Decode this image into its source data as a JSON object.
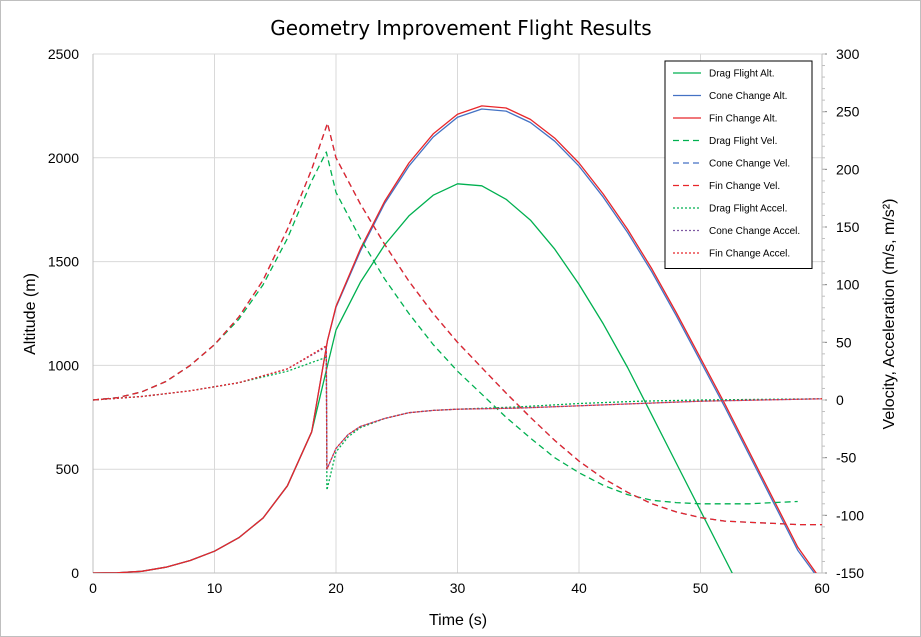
{
  "chart_data": {
    "type": "line",
    "title": "Geometry Improvement Flight Results",
    "xlabel": "Time (s)",
    "ylabel": "Altitude (m)",
    "y2label": "Velocity, Acceleration (m/s, m/s²)",
    "xlim": [
      0,
      60
    ],
    "ylim": [
      0,
      2500
    ],
    "y2lim": [
      -150,
      300
    ],
    "x_ticks": [
      "0",
      "10",
      "20",
      "30",
      "40",
      "50",
      "60"
    ],
    "y_ticks": [
      "0",
      "500",
      "1000",
      "1500",
      "2000",
      "2500"
    ],
    "y2_ticks": [
      "-150",
      "-100",
      "-50",
      "0",
      "50",
      "100",
      "150",
      "200",
      "250",
      "300"
    ],
    "grid": true,
    "legend_position": "top-right",
    "series": [
      {
        "name": "Drag Flight Alt.",
        "axis": "left",
        "color": "#00b050",
        "style": "solid",
        "points": [
          [
            0,
            0
          ],
          [
            2,
            1
          ],
          [
            4,
            8
          ],
          [
            6,
            28
          ],
          [
            8,
            60
          ],
          [
            10,
            105
          ],
          [
            12,
            170
          ],
          [
            14,
            265
          ],
          [
            16,
            420
          ],
          [
            18,
            680
          ],
          [
            19.3,
            1000
          ],
          [
            20,
            1170
          ],
          [
            22,
            1400
          ],
          [
            24,
            1580
          ],
          [
            26,
            1720
          ],
          [
            28,
            1820
          ],
          [
            30,
            1875
          ],
          [
            32,
            1865
          ],
          [
            34,
            1800
          ],
          [
            36,
            1700
          ],
          [
            38,
            1560
          ],
          [
            40,
            1390
          ],
          [
            42,
            1200
          ],
          [
            44,
            990
          ],
          [
            46,
            760
          ],
          [
            48,
            530
          ],
          [
            50,
            300
          ],
          [
            52,
            70
          ],
          [
            54,
            -160
          ]
        ]
      },
      {
        "name": "Cone Change Alt.",
        "axis": "left",
        "color": "#4472c4",
        "style": "solid",
        "points": [
          [
            0,
            0
          ],
          [
            2,
            1
          ],
          [
            4,
            8
          ],
          [
            6,
            28
          ],
          [
            8,
            60
          ],
          [
            10,
            105
          ],
          [
            12,
            170
          ],
          [
            14,
            265
          ],
          [
            16,
            420
          ],
          [
            18,
            680
          ],
          [
            19.3,
            1120
          ],
          [
            20,
            1280
          ],
          [
            22,
            1550
          ],
          [
            24,
            1780
          ],
          [
            26,
            1960
          ],
          [
            28,
            2100
          ],
          [
            30,
            2195
          ],
          [
            32,
            2235
          ],
          [
            34,
            2225
          ],
          [
            36,
            2170
          ],
          [
            38,
            2080
          ],
          [
            40,
            1960
          ],
          [
            42,
            1810
          ],
          [
            44,
            1640
          ],
          [
            46,
            1450
          ],
          [
            48,
            1240
          ],
          [
            50,
            1020
          ],
          [
            52,
            800
          ],
          [
            54,
            570
          ],
          [
            56,
            340
          ],
          [
            58,
            110
          ],
          [
            60,
            -50
          ]
        ]
      },
      {
        "name": "Fin Change Alt.",
        "axis": "left",
        "color": "#e8262a",
        "style": "solid",
        "points": [
          [
            0,
            0
          ],
          [
            2,
            1
          ],
          [
            4,
            8
          ],
          [
            6,
            28
          ],
          [
            8,
            60
          ],
          [
            10,
            105
          ],
          [
            12,
            170
          ],
          [
            14,
            265
          ],
          [
            16,
            420
          ],
          [
            18,
            680
          ],
          [
            19.3,
            1120
          ],
          [
            20,
            1285
          ],
          [
            22,
            1560
          ],
          [
            24,
            1790
          ],
          [
            26,
            1975
          ],
          [
            28,
            2115
          ],
          [
            30,
            2210
          ],
          [
            32,
            2250
          ],
          [
            34,
            2240
          ],
          [
            36,
            2185
          ],
          [
            38,
            2095
          ],
          [
            40,
            1975
          ],
          [
            42,
            1825
          ],
          [
            44,
            1655
          ],
          [
            46,
            1465
          ],
          [
            48,
            1255
          ],
          [
            50,
            1035
          ],
          [
            52,
            815
          ],
          [
            54,
            585
          ],
          [
            56,
            355
          ],
          [
            58,
            125
          ],
          [
            60,
            -40
          ]
        ]
      },
      {
        "name": "Drag Flight Vel.",
        "axis": "right",
        "color": "#00b050",
        "style": "dashed",
        "points": [
          [
            0,
            0
          ],
          [
            2,
            2
          ],
          [
            4,
            7
          ],
          [
            6,
            16
          ],
          [
            8,
            30
          ],
          [
            10,
            48
          ],
          [
            12,
            70
          ],
          [
            14,
            100
          ],
          [
            16,
            140
          ],
          [
            18,
            190
          ],
          [
            19.2,
            215
          ],
          [
            20,
            180
          ],
          [
            22,
            140
          ],
          [
            24,
            105
          ],
          [
            26,
            75
          ],
          [
            28,
            48
          ],
          [
            30,
            25
          ],
          [
            32,
            5
          ],
          [
            34,
            -15
          ],
          [
            36,
            -33
          ],
          [
            38,
            -50
          ],
          [
            40,
            -63
          ],
          [
            42,
            -74
          ],
          [
            44,
            -82
          ],
          [
            46,
            -87
          ],
          [
            48,
            -89
          ],
          [
            50,
            -90
          ],
          [
            52,
            -90
          ],
          [
            54,
            -90
          ],
          [
            56,
            -89
          ],
          [
            58,
            -88
          ]
        ]
      },
      {
        "name": "Cone Change Vel.",
        "axis": "right",
        "color": "#4472c4",
        "style": "dashed",
        "points": [
          [
            0,
            0
          ],
          [
            2,
            2
          ],
          [
            4,
            7
          ],
          [
            6,
            16
          ],
          [
            8,
            30
          ],
          [
            10,
            48
          ],
          [
            12,
            72
          ],
          [
            14,
            104
          ],
          [
            16,
            148
          ],
          [
            18,
            200
          ],
          [
            19.3,
            240
          ],
          [
            20,
            210
          ],
          [
            22,
            170
          ],
          [
            24,
            135
          ],
          [
            26,
            103
          ],
          [
            28,
            75
          ],
          [
            30,
            50
          ],
          [
            32,
            28
          ],
          [
            34,
            6
          ],
          [
            36,
            -15
          ],
          [
            38,
            -35
          ],
          [
            40,
            -53
          ],
          [
            42,
            -68
          ],
          [
            44,
            -80
          ],
          [
            46,
            -90
          ],
          [
            48,
            -97
          ],
          [
            50,
            -102
          ],
          [
            52,
            -105
          ],
          [
            54,
            -106
          ],
          [
            56,
            -107
          ],
          [
            58,
            -108
          ],
          [
            60,
            -108
          ]
        ]
      },
      {
        "name": "Fin Change Vel.",
        "axis": "right",
        "color": "#e8262a",
        "style": "dashed",
        "points": [
          [
            0,
            0
          ],
          [
            2,
            2
          ],
          [
            4,
            7
          ],
          [
            6,
            16
          ],
          [
            8,
            30
          ],
          [
            10,
            48
          ],
          [
            12,
            72
          ],
          [
            14,
            104
          ],
          [
            16,
            148
          ],
          [
            18,
            200
          ],
          [
            19.3,
            240
          ],
          [
            20,
            210
          ],
          [
            22,
            170
          ],
          [
            24,
            135
          ],
          [
            26,
            103
          ],
          [
            28,
            75
          ],
          [
            30,
            50
          ],
          [
            32,
            28
          ],
          [
            34,
            6
          ],
          [
            36,
            -15
          ],
          [
            38,
            -35
          ],
          [
            40,
            -53
          ],
          [
            42,
            -68
          ],
          [
            44,
            -80
          ],
          [
            46,
            -90
          ],
          [
            48,
            -97
          ],
          [
            50,
            -102
          ],
          [
            52,
            -105
          ],
          [
            54,
            -106
          ],
          [
            56,
            -107
          ],
          [
            58,
            -108
          ],
          [
            60,
            -108
          ]
        ]
      },
      {
        "name": "Drag Flight Accel.",
        "axis": "right",
        "color": "#00b050",
        "style": "dotted",
        "points": [
          [
            0,
            0
          ],
          [
            4,
            3
          ],
          [
            8,
            8
          ],
          [
            12,
            15
          ],
          [
            16,
            25
          ],
          [
            19.2,
            37
          ],
          [
            19.25,
            -78
          ],
          [
            20,
            -45
          ],
          [
            21,
            -32
          ],
          [
            22,
            -24
          ],
          [
            24,
            -16
          ],
          [
            26,
            -11
          ],
          [
            28,
            -9
          ],
          [
            30,
            -8
          ],
          [
            35,
            -6
          ],
          [
            40,
            -3
          ],
          [
            45,
            -1
          ],
          [
            50,
            0
          ],
          [
            55,
            0.5
          ],
          [
            60,
            1
          ]
        ]
      },
      {
        "name": "Cone Change Accel.",
        "axis": "right",
        "color": "#7f5aa3",
        "style": "dotted",
        "points": [
          [
            0,
            0
          ],
          [
            4,
            3
          ],
          [
            8,
            8
          ],
          [
            12,
            15
          ],
          [
            16,
            27
          ],
          [
            19.2,
            46
          ],
          [
            19.25,
            -60
          ],
          [
            20,
            -42
          ],
          [
            21,
            -30
          ],
          [
            22,
            -23
          ],
          [
            24,
            -16
          ],
          [
            26,
            -11
          ],
          [
            28,
            -9
          ],
          [
            30,
            -8
          ],
          [
            35,
            -7
          ],
          [
            40,
            -5
          ],
          [
            45,
            -3
          ],
          [
            50,
            -1
          ],
          [
            55,
            0
          ],
          [
            60,
            1
          ]
        ]
      },
      {
        "name": "Fin Change Accel.",
        "axis": "right",
        "color": "#e8262a",
        "style": "dotted",
        "points": [
          [
            0,
            0
          ],
          [
            4,
            3
          ],
          [
            8,
            8
          ],
          [
            12,
            15
          ],
          [
            16,
            27
          ],
          [
            19.2,
            47
          ],
          [
            19.25,
            -60
          ],
          [
            20,
            -42
          ],
          [
            21,
            -30
          ],
          [
            22,
            -23
          ],
          [
            24,
            -16
          ],
          [
            26,
            -11
          ],
          [
            28,
            -9
          ],
          [
            30,
            -8
          ],
          [
            35,
            -7
          ],
          [
            40,
            -5
          ],
          [
            45,
            -3
          ],
          [
            50,
            -1
          ],
          [
            55,
            0
          ],
          [
            60,
            1
          ]
        ]
      }
    ]
  }
}
